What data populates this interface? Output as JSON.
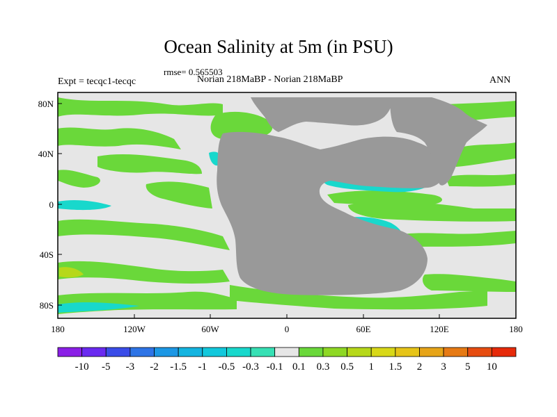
{
  "figure": {
    "title": "Ocean Salinity at 5m (in PSU)",
    "rmse": "rmse= 0.565503",
    "experiment": "Expt = tecqc1-tecqc",
    "subtitle": "Norian 218MaBP - Norian 218MaBP",
    "season": "ANN"
  },
  "axes": {
    "x_ticks": [
      "180",
      "120W",
      "60W",
      "0",
      "60E",
      "120E",
      "180"
    ],
    "y_ticks": [
      "80N",
      "40N",
      "0",
      "40S",
      "80S"
    ]
  },
  "colorbar": {
    "labels": [
      "-10",
      "-5",
      "-3",
      "-2",
      "-1.5",
      "-1",
      "-0.5",
      "-0.3",
      "-0.1",
      "0.1",
      "0.3",
      "0.5",
      "1",
      "1.5",
      "2",
      "3",
      "5",
      "10"
    ],
    "colors": [
      "#8a1fe6",
      "#6a2af0",
      "#3a4ce8",
      "#2e74e6",
      "#1c97e4",
      "#14b4e0",
      "#12c8dc",
      "#18d8cc",
      "#36e0b4",
      "#e6e6e6",
      "#6ad83a",
      "#8ed824",
      "#b6d81a",
      "#d8d818",
      "#e6c418",
      "#e6a418",
      "#e67a14",
      "#e64c10",
      "#e62a0a"
    ]
  },
  "map_colors": {
    "land": "#999999",
    "neutral": "#e6e6e6",
    "green": "#6ad83a",
    "lightgreen": "#8ed824",
    "yellowgreen": "#b6d81a",
    "teal": "#18d8cc",
    "cyan": "#12c8dc",
    "blue": "#1c97e4"
  }
}
